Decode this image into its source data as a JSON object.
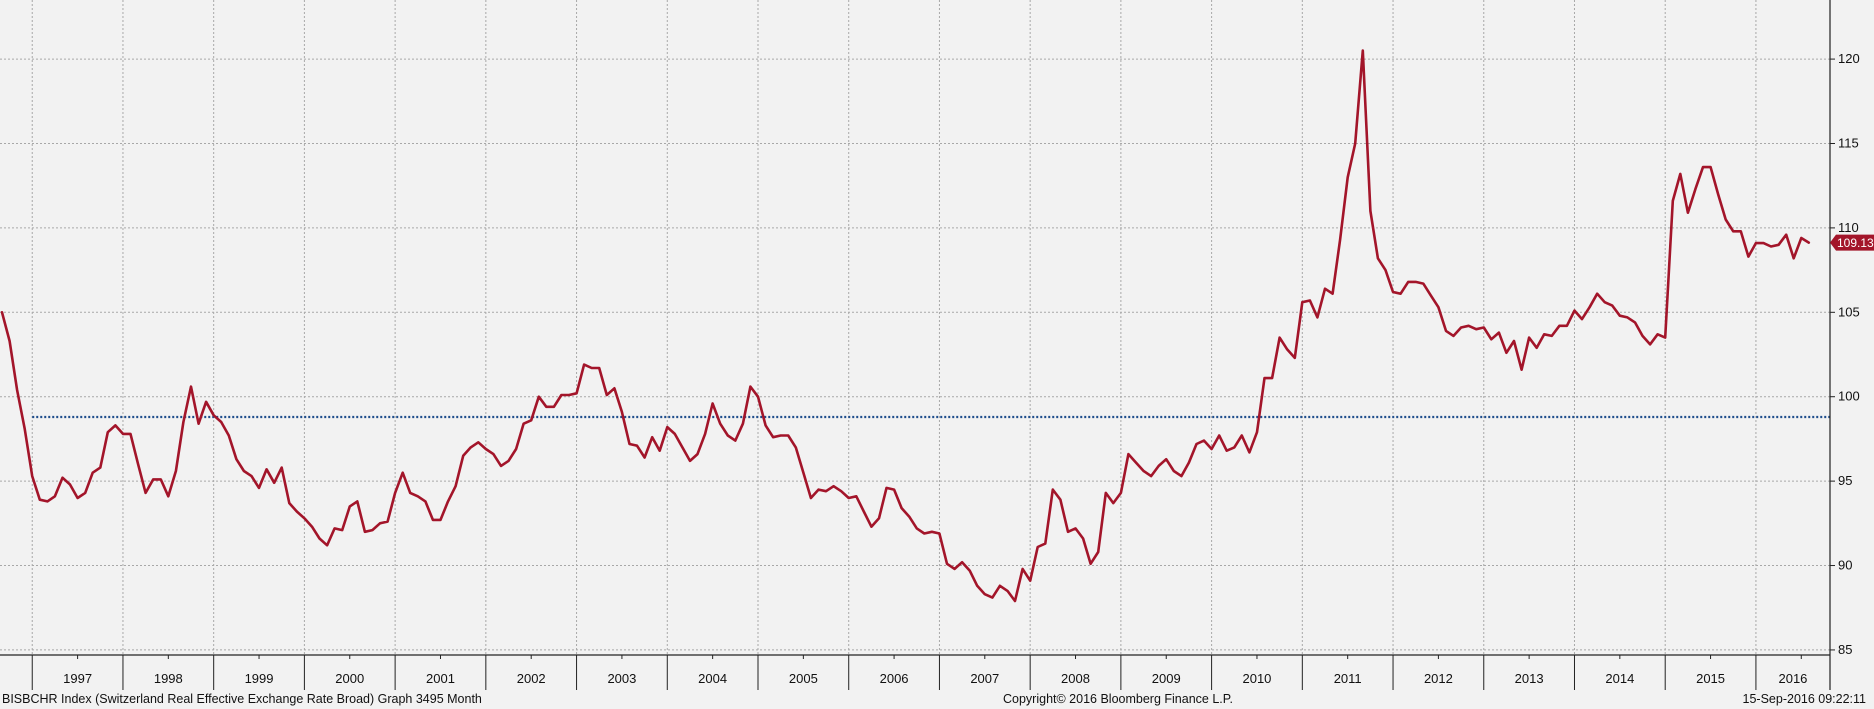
{
  "chart_data": {
    "type": "line",
    "x_unit": "month",
    "x_ticks": [
      "1997",
      "1998",
      "1999",
      "2000",
      "2001",
      "2002",
      "2003",
      "2004",
      "2005",
      "2006",
      "2007",
      "2008",
      "2009",
      "2010",
      "2011",
      "2012",
      "2013",
      "2014",
      "2015",
      "2016"
    ],
    "y_ticks": [
      85,
      90,
      95,
      100,
      105,
      110,
      115,
      120
    ],
    "ylim": [
      84.7,
      123.5
    ],
    "x_range": [
      "1996-09",
      "2016-09"
    ],
    "grid": true,
    "legend": "none",
    "series": [
      {
        "color": "#a3152a",
        "points": [
          [
            "1996-09",
            105.0
          ],
          [
            "1996-10",
            103.3
          ],
          [
            "1996-11",
            100.4
          ],
          [
            "1996-12",
            98.1
          ],
          [
            "1997-01",
            95.3
          ],
          [
            "1997-02",
            93.9
          ],
          [
            "1997-03",
            93.8
          ],
          [
            "1997-04",
            94.1
          ],
          [
            "1997-05",
            95.2
          ],
          [
            "1997-06",
            94.8
          ],
          [
            "1997-07",
            94.0
          ],
          [
            "1997-08",
            94.3
          ],
          [
            "1997-09",
            95.5
          ],
          [
            "1997-10",
            95.8
          ],
          [
            "1997-11",
            97.9
          ],
          [
            "1997-12",
            98.3
          ],
          [
            "1998-01",
            97.8
          ],
          [
            "1998-02",
            97.8
          ],
          [
            "1998-03",
            96.0
          ],
          [
            "1998-04",
            94.3
          ],
          [
            "1998-05",
            95.1
          ],
          [
            "1998-06",
            95.1
          ],
          [
            "1998-07",
            94.1
          ],
          [
            "1998-08",
            95.6
          ],
          [
            "1998-09",
            98.5
          ],
          [
            "1998-10",
            100.6
          ],
          [
            "1998-11",
            98.4
          ],
          [
            "1998-12",
            99.7
          ],
          [
            "1999-01",
            98.9
          ],
          [
            "1999-02",
            98.5
          ],
          [
            "1999-03",
            97.7
          ],
          [
            "1999-04",
            96.3
          ],
          [
            "1999-05",
            95.6
          ],
          [
            "1999-06",
            95.3
          ],
          [
            "1999-07",
            94.6
          ],
          [
            "1999-08",
            95.7
          ],
          [
            "1999-09",
            94.9
          ],
          [
            "1999-10",
            95.8
          ],
          [
            "1999-11",
            93.7
          ],
          [
            "1999-12",
            93.2
          ],
          [
            "2000-01",
            92.8
          ],
          [
            "2000-02",
            92.3
          ],
          [
            "2000-03",
            91.6
          ],
          [
            "2000-04",
            91.2
          ],
          [
            "2000-05",
            92.2
          ],
          [
            "2000-06",
            92.1
          ],
          [
            "2000-07",
            93.5
          ],
          [
            "2000-08",
            93.8
          ],
          [
            "2000-09",
            92.0
          ],
          [
            "2000-10",
            92.1
          ],
          [
            "2000-11",
            92.5
          ],
          [
            "2000-12",
            92.6
          ],
          [
            "2001-01",
            94.3
          ],
          [
            "2001-02",
            95.5
          ],
          [
            "2001-03",
            94.3
          ],
          [
            "2001-04",
            94.1
          ],
          [
            "2001-05",
            93.8
          ],
          [
            "2001-06",
            92.7
          ],
          [
            "2001-07",
            92.7
          ],
          [
            "2001-08",
            93.8
          ],
          [
            "2001-09",
            94.7
          ],
          [
            "2001-10",
            96.5
          ],
          [
            "2001-11",
            97.0
          ],
          [
            "2001-12",
            97.3
          ],
          [
            "2002-01",
            96.9
          ],
          [
            "2002-02",
            96.6
          ],
          [
            "2002-03",
            95.9
          ],
          [
            "2002-04",
            96.2
          ],
          [
            "2002-05",
            96.9
          ],
          [
            "2002-06",
            98.4
          ],
          [
            "2002-07",
            98.6
          ],
          [
            "2002-08",
            100.0
          ],
          [
            "2002-09",
            99.4
          ],
          [
            "2002-10",
            99.4
          ],
          [
            "2002-11",
            100.1
          ],
          [
            "2002-12",
            100.1
          ],
          [
            "2003-01",
            100.2
          ],
          [
            "2003-02",
            101.9
          ],
          [
            "2003-03",
            101.7
          ],
          [
            "2003-04",
            101.7
          ],
          [
            "2003-05",
            100.1
          ],
          [
            "2003-06",
            100.5
          ],
          [
            "2003-07",
            99.1
          ],
          [
            "2003-08",
            97.2
          ],
          [
            "2003-09",
            97.1
          ],
          [
            "2003-10",
            96.4
          ],
          [
            "2003-11",
            97.6
          ],
          [
            "2003-12",
            96.8
          ],
          [
            "2004-01",
            98.2
          ],
          [
            "2004-02",
            97.8
          ],
          [
            "2004-03",
            97.0
          ],
          [
            "2004-04",
            96.2
          ],
          [
            "2004-05",
            96.6
          ],
          [
            "2004-06",
            97.8
          ],
          [
            "2004-07",
            99.6
          ],
          [
            "2004-08",
            98.4
          ],
          [
            "2004-09",
            97.7
          ],
          [
            "2004-10",
            97.4
          ],
          [
            "2004-11",
            98.4
          ],
          [
            "2004-12",
            100.6
          ],
          [
            "2005-01",
            100.0
          ],
          [
            "2005-02",
            98.3
          ],
          [
            "2005-03",
            97.6
          ],
          [
            "2005-04",
            97.7
          ],
          [
            "2005-05",
            97.7
          ],
          [
            "2005-06",
            97.0
          ],
          [
            "2005-07",
            95.5
          ],
          [
            "2005-08",
            94.0
          ],
          [
            "2005-09",
            94.5
          ],
          [
            "2005-10",
            94.4
          ],
          [
            "2005-11",
            94.7
          ],
          [
            "2005-12",
            94.4
          ],
          [
            "2006-01",
            94.0
          ],
          [
            "2006-02",
            94.1
          ],
          [
            "2006-03",
            93.2
          ],
          [
            "2006-04",
            92.3
          ],
          [
            "2006-05",
            92.8
          ],
          [
            "2006-06",
            94.6
          ],
          [
            "2006-07",
            94.5
          ],
          [
            "2006-08",
            93.4
          ],
          [
            "2006-09",
            92.9
          ],
          [
            "2006-10",
            92.2
          ],
          [
            "2006-11",
            91.9
          ],
          [
            "2006-12",
            92.0
          ],
          [
            "2007-01",
            91.9
          ],
          [
            "2007-02",
            90.1
          ],
          [
            "2007-03",
            89.8
          ],
          [
            "2007-04",
            90.2
          ],
          [
            "2007-05",
            89.7
          ],
          [
            "2007-06",
            88.8
          ],
          [
            "2007-07",
            88.3
          ],
          [
            "2007-08",
            88.1
          ],
          [
            "2007-09",
            88.8
          ],
          [
            "2007-10",
            88.5
          ],
          [
            "2007-11",
            87.9
          ],
          [
            "2007-12",
            89.8
          ],
          [
            "2008-01",
            89.1
          ],
          [
            "2008-02",
            91.1
          ],
          [
            "2008-03",
            91.3
          ],
          [
            "2008-04",
            94.5
          ],
          [
            "2008-05",
            93.9
          ],
          [
            "2008-06",
            92.0
          ],
          [
            "2008-07",
            92.2
          ],
          [
            "2008-08",
            91.6
          ],
          [
            "2008-09",
            90.1
          ],
          [
            "2008-10",
            90.8
          ],
          [
            "2008-11",
            94.3
          ],
          [
            "2008-12",
            93.7
          ],
          [
            "2009-01",
            94.3
          ],
          [
            "2009-02",
            96.6
          ],
          [
            "2009-03",
            96.1
          ],
          [
            "2009-04",
            95.6
          ],
          [
            "2009-05",
            95.3
          ],
          [
            "2009-06",
            95.9
          ],
          [
            "2009-07",
            96.3
          ],
          [
            "2009-08",
            95.6
          ],
          [
            "2009-09",
            95.3
          ],
          [
            "2009-10",
            96.1
          ],
          [
            "2009-11",
            97.2
          ],
          [
            "2009-12",
            97.4
          ],
          [
            "2010-01",
            96.9
          ],
          [
            "2010-02",
            97.7
          ],
          [
            "2010-03",
            96.8
          ],
          [
            "2010-04",
            97.0
          ],
          [
            "2010-05",
            97.7
          ],
          [
            "2010-06",
            96.7
          ],
          [
            "2010-07",
            97.9
          ],
          [
            "2010-08",
            101.1
          ],
          [
            "2010-09",
            101.1
          ],
          [
            "2010-10",
            103.5
          ],
          [
            "2010-11",
            102.8
          ],
          [
            "2010-12",
            102.3
          ],
          [
            "2011-01",
            105.6
          ],
          [
            "2011-02",
            105.7
          ],
          [
            "2011-03",
            104.7
          ],
          [
            "2011-04",
            106.4
          ],
          [
            "2011-05",
            106.1
          ],
          [
            "2011-06",
            109.3
          ],
          [
            "2011-07",
            113.0
          ],
          [
            "2011-08",
            115.0
          ],
          [
            "2011-09",
            120.5
          ],
          [
            "2011-10",
            111.0
          ],
          [
            "2011-11",
            108.2
          ],
          [
            "2011-12",
            107.5
          ],
          [
            "2012-01",
            106.2
          ],
          [
            "2012-02",
            106.1
          ],
          [
            "2012-03",
            106.8
          ],
          [
            "2012-04",
            106.8
          ],
          [
            "2012-05",
            106.7
          ],
          [
            "2012-06",
            106.0
          ],
          [
            "2012-07",
            105.3
          ],
          [
            "2012-08",
            103.9
          ],
          [
            "2012-09",
            103.6
          ],
          [
            "2012-10",
            104.1
          ],
          [
            "2012-11",
            104.2
          ],
          [
            "2012-12",
            104.0
          ],
          [
            "2013-01",
            104.1
          ],
          [
            "2013-02",
            103.4
          ],
          [
            "2013-03",
            103.8
          ],
          [
            "2013-04",
            102.6
          ],
          [
            "2013-05",
            103.3
          ],
          [
            "2013-06",
            101.6
          ],
          [
            "2013-07",
            103.5
          ],
          [
            "2013-08",
            102.9
          ],
          [
            "2013-09",
            103.7
          ],
          [
            "2013-10",
            103.6
          ],
          [
            "2013-11",
            104.2
          ],
          [
            "2013-12",
            104.2
          ],
          [
            "2014-01",
            105.1
          ],
          [
            "2014-02",
            104.6
          ],
          [
            "2014-03",
            105.3
          ],
          [
            "2014-04",
            106.1
          ],
          [
            "2014-05",
            105.6
          ],
          [
            "2014-06",
            105.4
          ],
          [
            "2014-07",
            104.8
          ],
          [
            "2014-08",
            104.7
          ],
          [
            "2014-09",
            104.4
          ],
          [
            "2014-10",
            103.6
          ],
          [
            "2014-11",
            103.1
          ],
          [
            "2014-12",
            103.7
          ],
          [
            "2015-01",
            103.5
          ],
          [
            "2015-02",
            111.6
          ],
          [
            "2015-03",
            113.2
          ],
          [
            "2015-04",
            110.9
          ],
          [
            "2015-05",
            112.3
          ],
          [
            "2015-06",
            113.6
          ],
          [
            "2015-07",
            113.6
          ],
          [
            "2015-08",
            112.0
          ],
          [
            "2015-09",
            110.5
          ],
          [
            "2015-10",
            109.8
          ],
          [
            "2015-11",
            109.8
          ],
          [
            "2015-12",
            108.3
          ],
          [
            "2016-01",
            109.1
          ],
          [
            "2016-02",
            109.1
          ],
          [
            "2016-03",
            108.9
          ],
          [
            "2016-04",
            109.0
          ],
          [
            "2016-05",
            109.6
          ],
          [
            "2016-06",
            108.2
          ],
          [
            "2016-07",
            109.4
          ],
          [
            "2016-08",
            109.13
          ]
        ]
      }
    ],
    "reference_line": {
      "value": 98.8,
      "color": "#1f4e8c",
      "style": "dotted",
      "x_start": "1997-01"
    },
    "last_value_label": {
      "text": "109.13",
      "value": 109.13,
      "color": "#a3152a"
    }
  },
  "footer": {
    "left": "BISBCHR Index (Switzerland Real Effective Exchange Rate Broad) Graph 3495  Month",
    "center": "Copyright© 2016 Bloomberg Finance L.P.",
    "right": "15-Sep-2016 09:22:11"
  },
  "colors": {
    "background": "#f2f2f2",
    "grid": "#a8a8a8",
    "axis": "#222222"
  }
}
